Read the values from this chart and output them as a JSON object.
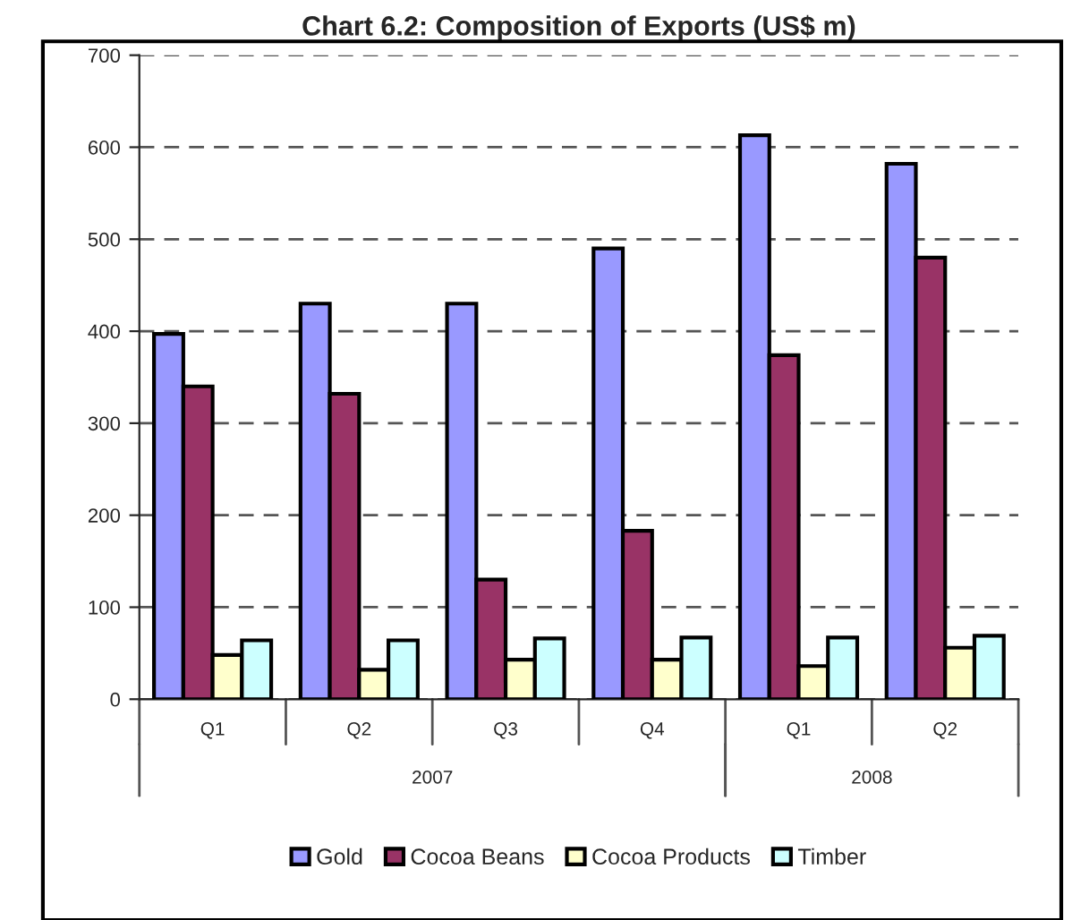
{
  "chart_data": {
    "type": "bar",
    "title": "Chart 6.2: Composition of Exports (US$ m)",
    "categories": [
      "Q1",
      "Q2",
      "Q3",
      "Q4",
      "Q1",
      "Q2"
    ],
    "series": [
      {
        "name": "Gold",
        "color": "#9999ff",
        "values": [
          397,
          430,
          430,
          490,
          613,
          582
        ]
      },
      {
        "name": "Cocoa Beans",
        "color": "#993366",
        "values": [
          340,
          332,
          130,
          183,
          374,
          480
        ]
      },
      {
        "name": "Cocoa Products",
        "color": "#ffffcc",
        "values": [
          48,
          32,
          43,
          43,
          36,
          56
        ]
      },
      {
        "name": "Timber",
        "color": "#ccffff",
        "values": [
          64,
          64,
          66,
          67,
          67,
          69
        ]
      }
    ],
    "annotations": [
      "2007",
      "2008"
    ],
    "ylim": [
      0,
      700
    ],
    "yticks": [
      0,
      100,
      200,
      300,
      400,
      500,
      600,
      700
    ],
    "grid": "y",
    "legend": "bottom"
  }
}
